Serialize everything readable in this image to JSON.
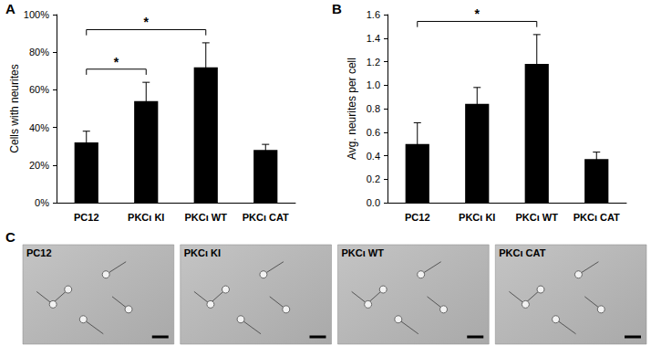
{
  "chart_data": [
    {
      "type": "bar",
      "title": "A",
      "categories": [
        "PC12",
        "PKCι KI",
        "PKCι WT",
        "PKCι CAT"
      ],
      "values": [
        32,
        54,
        72,
        28
      ],
      "errors": [
        6,
        10,
        13,
        3
      ],
      "color": "#000000",
      "y_label": "Cells with neurites",
      "ylim": [
        0,
        100
      ],
      "yticks": [
        {
          "value": 0,
          "label": "0%"
        },
        {
          "value": 20,
          "label": "20%"
        },
        {
          "value": 40,
          "label": "40%"
        },
        {
          "value": 60,
          "label": "60%"
        },
        {
          "value": 80,
          "label": "80%"
        },
        {
          "value": 100,
          "label": "100%"
        }
      ],
      "grid": false,
      "significance": [
        {
          "from": "PC12",
          "to": "PKCι KI",
          "label": "*"
        },
        {
          "from": "PC12",
          "to": "PKCι WT",
          "label": "*"
        }
      ]
    },
    {
      "type": "bar",
      "title": "B",
      "categories": [
        "PC12",
        "PKCι KI",
        "PKCι WT",
        "PKCι CAT"
      ],
      "values": [
        0.5,
        0.84,
        1.18,
        0.37
      ],
      "errors": [
        0.18,
        0.14,
        0.25,
        0.06
      ],
      "color": "#000000",
      "y_label": "Avg. neurites per cell",
      "ylim": [
        0,
        1.6
      ],
      "yticks": [
        {
          "value": 0,
          "label": "0.0"
        },
        0.2,
        0.4,
        0.6,
        0.8,
        {
          "value": 1,
          "label": "1.0"
        },
        1.2,
        1.4,
        1.6
      ],
      "grid": false,
      "significance": [
        {
          "from": "PC12",
          "to": "PKCι WT",
          "label": "*"
        }
      ]
    }
  ],
  "image_panel": {
    "title": "C",
    "images": [
      "PC12",
      "PKCι KI",
      "PKCι WT",
      "PKCι CAT"
    ]
  }
}
